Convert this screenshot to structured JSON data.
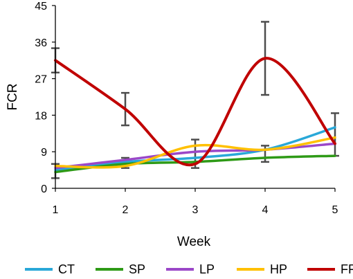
{
  "chart_data": {
    "type": "line",
    "title": "",
    "xlabel": "Week",
    "ylabel": "FCR",
    "x": [
      1,
      2,
      3,
      4,
      5
    ],
    "xlim": [
      1,
      5
    ],
    "ylim": [
      0,
      45
    ],
    "yticks": [
      0,
      9,
      18,
      27,
      36,
      45
    ],
    "grid": false,
    "legend_position": "bottom",
    "series": [
      {
        "name": "CT",
        "color": "#29a8d8",
        "values": [
          4.5,
          6.5,
          7.5,
          9.5,
          15.0
        ],
        "errors": [
          0,
          0,
          0,
          0,
          0
        ]
      },
      {
        "name": "SP",
        "color": "#2e9a16",
        "values": [
          4.0,
          6.0,
          6.5,
          7.5,
          8.0
        ],
        "errors": [
          0.8,
          0.8,
          0.8,
          0.8,
          0.8
        ]
      },
      {
        "name": "LP",
        "color": "#9b47c8",
        "values": [
          5.0,
          7.0,
          9.0,
          9.5,
          11.0
        ],
        "errors": [
          0,
          0,
          0,
          0,
          0
        ]
      },
      {
        "name": "HP",
        "color": "#ffc000",
        "values": [
          5.5,
          5.5,
          10.5,
          9.5,
          12.5
        ],
        "errors": [
          0,
          0,
          0,
          0,
          0
        ]
      },
      {
        "name": "FF",
        "color": "#c00000",
        "values": [
          31.5,
          19.5,
          6.0,
          32.0,
          11.0
        ],
        "errors": [
          3.0,
          4.0,
          1.0,
          9.0,
          2.5
        ]
      }
    ],
    "error_bars": [
      {
        "x": 1,
        "low": 2.5,
        "high": 6.0
      },
      {
        "x": 1,
        "low": 28.5,
        "high": 34.5
      },
      {
        "x": 2,
        "low": 5.0,
        "high": 7.5
      },
      {
        "x": 2,
        "low": 15.5,
        "high": 23.5
      },
      {
        "x": 3,
        "low": 5.0,
        "high": 12.0
      },
      {
        "x": 4,
        "low": 6.5,
        "high": 10.5
      },
      {
        "x": 4,
        "low": 23.0,
        "high": 41.0
      },
      {
        "x": 5,
        "low": 8.0,
        "high": 18.5
      }
    ]
  }
}
